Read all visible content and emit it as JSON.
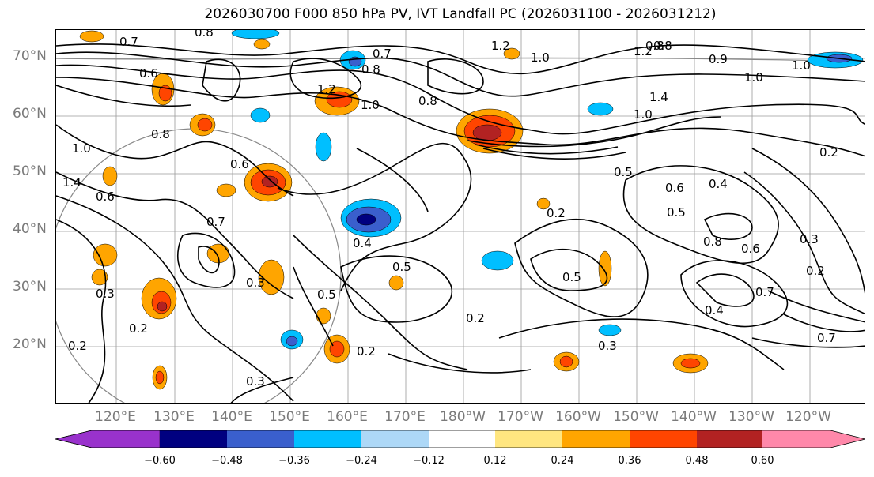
{
  "title": "2026030700 F000 850 hPa PV, IVT Landfall PC (2026031100 - 2026031212)",
  "lat_labels": [
    "70°N",
    "60°N",
    "50°N",
    "40°N",
    "30°N",
    "20°N"
  ],
  "lon_labels": [
    "120°E",
    "130°E",
    "140°E",
    "150°E",
    "160°E",
    "170°E",
    "180°W",
    "170°W",
    "160°W",
    "150°W",
    "140°W",
    "130°W",
    "120°W"
  ],
  "contour_labels": [
    "0.7",
    "0.8",
    "0.6",
    "0.7",
    "1.2",
    "1.0",
    "0.8",
    "1.2",
    "1.0",
    "0.8",
    "0.8",
    "1.0",
    "1.2",
    "0.8",
    "0.9",
    "1.0",
    "1.4",
    "1.0",
    "0.2",
    "0.5",
    "0.6",
    "0.4",
    "0.5",
    "0.8",
    "0.6",
    "0.3",
    "0.2",
    "0.4",
    "0.7",
    "0.5",
    "0.5",
    "0.4",
    "0.3",
    "0.5",
    "0.2",
    "0.2",
    "0.3",
    "0.7",
    "0.7",
    "0.2",
    "0.3",
    "0.6",
    "1.4",
    "1.0",
    "0.6",
    "0.8",
    "0.3",
    "0.2",
    "0.2"
  ],
  "colorbar": {
    "ticks": [
      "−0.60",
      "−0.48",
      "−0.36",
      "−0.24",
      "−0.12",
      "0.12",
      "0.24",
      "0.36",
      "0.48",
      "0.60"
    ],
    "colors": [
      "#9932CC",
      "#000080",
      "#3A5FCD",
      "#00BFFF",
      "#ADD8F7",
      "#FFFFFF",
      "#FFE680",
      "#FFA500",
      "#FF4500",
      "#B22222",
      "#FF88AA"
    ]
  }
}
